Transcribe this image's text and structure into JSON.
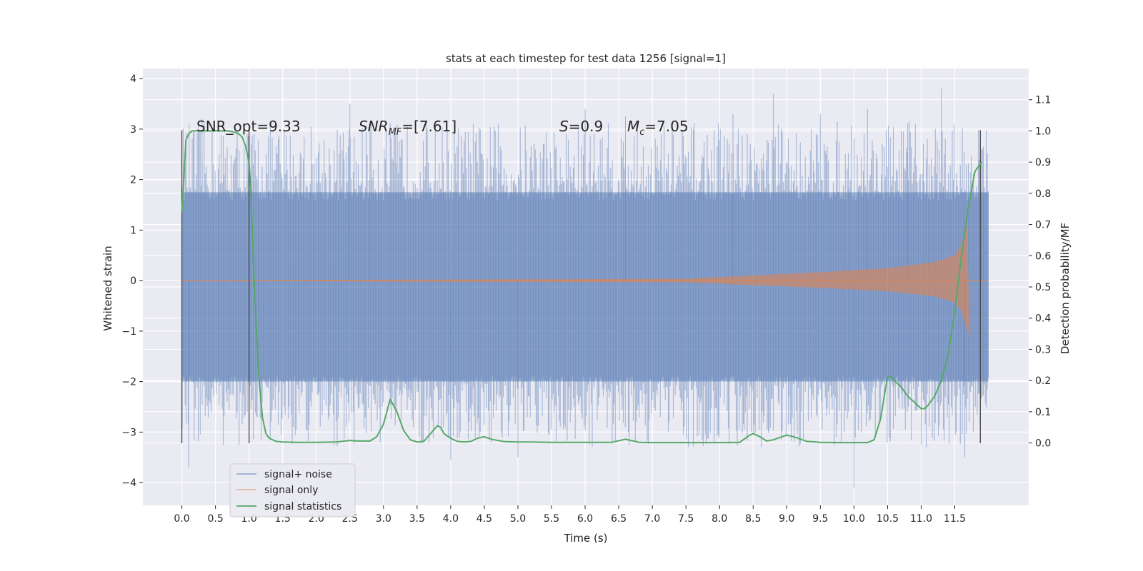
{
  "chart_data": {
    "type": "line",
    "title": "stats at each timestep for test data 1256 [signal=1]",
    "xlabel": "Time (s)",
    "ylabel_left": "Whitened strain",
    "ylabel_right": "Detection probability/MF",
    "xlim": [
      -0.58,
      12.6
    ],
    "ylim_left": [
      -4.45,
      4.2
    ],
    "ylim_right": [
      -0.2,
      1.2
    ],
    "x_ticks": [
      "0.0",
      "0.5",
      "1.0",
      "1.5",
      "2.0",
      "2.5",
      "3.0",
      "3.5",
      "4.0",
      "4.5",
      "5.0",
      "5.5",
      "6.0",
      "6.5",
      "7.0",
      "7.5",
      "8.0",
      "8.5",
      "9.0",
      "9.5",
      "10.0",
      "10.5",
      "11.0",
      "11.5"
    ],
    "y_ticks_left": [
      "−4",
      "−3",
      "−2",
      "−1",
      "0",
      "1",
      "2",
      "3",
      "4"
    ],
    "y_ticks_right": [
      "0.0",
      "0.1",
      "0.2",
      "0.3",
      "0.4",
      "0.5",
      "0.6",
      "0.7",
      "0.8",
      "0.9",
      "1.0",
      "1.1"
    ],
    "grid": true,
    "legend_position": "lower-left",
    "annotations": {
      "snr_opt": "SNR_opt=9.33",
      "snr_mf_main": "SNR",
      "snr_mf_sub": "MF",
      "snr_mf_value": "=[7.61]",
      "s_symbol": "S",
      "s_value": "=0.9",
      "mc_main": "M",
      "mc_sub": "c",
      "mc_value": "=7.05"
    },
    "series": [
      {
        "name": "signal+ noise",
        "color": "#4c72b0",
        "x_range": [
          0.0,
          12.0
        ],
        "typical_band": [
          -2.0,
          1.75
        ],
        "extremes": [
          [
            0.1,
            -3.7
          ],
          [
            0.3,
            3.2
          ],
          [
            2.5,
            3.5
          ],
          [
            2.8,
            3.15
          ],
          [
            4.0,
            -3.55
          ],
          [
            5.0,
            -3.5
          ],
          [
            6.0,
            3.4
          ],
          [
            6.6,
            3.25
          ],
          [
            8.2,
            3.3
          ],
          [
            8.8,
            3.7
          ],
          [
            9.5,
            3.3
          ],
          [
            10.0,
            -4.1
          ],
          [
            10.2,
            3.4
          ],
          [
            10.8,
            3.1
          ],
          [
            11.3,
            3.8
          ],
          [
            11.65,
            -3.5
          ],
          [
            11.9,
            2.6
          ]
        ]
      },
      {
        "name": "signal only",
        "color": "#dd8452",
        "x_range": [
          0.0,
          12.0
        ],
        "envelope": [
          [
            0.0,
            0.0
          ],
          [
            7.5,
            0.03
          ],
          [
            8.5,
            0.1
          ],
          [
            9.5,
            0.16
          ],
          [
            10.5,
            0.24
          ],
          [
            11.2,
            0.36
          ],
          [
            11.5,
            0.5
          ],
          [
            11.6,
            0.7
          ],
          [
            11.68,
            1.1
          ],
          [
            11.72,
            -1.1
          ],
          [
            12.0,
            0.0
          ]
        ]
      },
      {
        "name": "signal statistics",
        "color": "#55a868",
        "axis": "right",
        "x": [
          0.0,
          0.03,
          0.06,
          0.1,
          0.15,
          0.2,
          0.3,
          0.4,
          0.5,
          0.6,
          0.7,
          0.8,
          0.85,
          0.9,
          0.95,
          1.0,
          1.03,
          1.06,
          1.1,
          1.15,
          1.2,
          1.25,
          1.3,
          1.4,
          1.5,
          1.7,
          2.0,
          2.3,
          2.5,
          2.6,
          2.8,
          2.9,
          3.0,
          3.05,
          3.1,
          3.2,
          3.3,
          3.4,
          3.5,
          3.6,
          3.7,
          3.8,
          3.85,
          3.9,
          4.0,
          4.1,
          4.2,
          4.3,
          4.4,
          4.5,
          4.6,
          4.8,
          5.0,
          5.2,
          5.5,
          6.0,
          6.4,
          6.6,
          6.8,
          7.0,
          7.5,
          8.0,
          8.3,
          8.45,
          8.5,
          8.6,
          8.7,
          8.8,
          9.0,
          9.1,
          9.3,
          9.5,
          9.8,
          10.0,
          10.2,
          10.3,
          10.4,
          10.45,
          10.5,
          10.55,
          10.6,
          10.7,
          10.8,
          10.9,
          11.0,
          11.05,
          11.1,
          11.2,
          11.3,
          11.4,
          11.5,
          11.6,
          11.7,
          11.8,
          11.9
        ],
        "y": [
          0.74,
          0.85,
          0.97,
          0.99,
          1.0,
          1.0,
          1.0,
          1.0,
          1.0,
          1.0,
          1.0,
          0.995,
          0.99,
          0.98,
          0.95,
          0.9,
          0.8,
          0.6,
          0.4,
          0.2,
          0.08,
          0.03,
          0.015,
          0.005,
          0.003,
          0.002,
          0.002,
          0.003,
          0.008,
          0.006,
          0.006,
          0.02,
          0.06,
          0.1,
          0.14,
          0.1,
          0.04,
          0.01,
          0.003,
          0.005,
          0.03,
          0.055,
          0.05,
          0.03,
          0.015,
          0.005,
          0.003,
          0.005,
          0.015,
          0.02,
          0.012,
          0.004,
          0.003,
          0.003,
          0.002,
          0.002,
          0.002,
          0.012,
          0.002,
          0.001,
          0.001,
          0.001,
          0.002,
          0.025,
          0.03,
          0.02,
          0.006,
          0.01,
          0.025,
          0.02,
          0.005,
          0.002,
          0.001,
          0.001,
          0.001,
          0.01,
          0.08,
          0.15,
          0.21,
          0.215,
          0.2,
          0.18,
          0.15,
          0.13,
          0.11,
          0.11,
          0.12,
          0.15,
          0.2,
          0.28,
          0.42,
          0.6,
          0.75,
          0.87,
          0.9
        ]
      }
    ],
    "vertical_markers": [
      0.0,
      1.0,
      11.88
    ]
  }
}
